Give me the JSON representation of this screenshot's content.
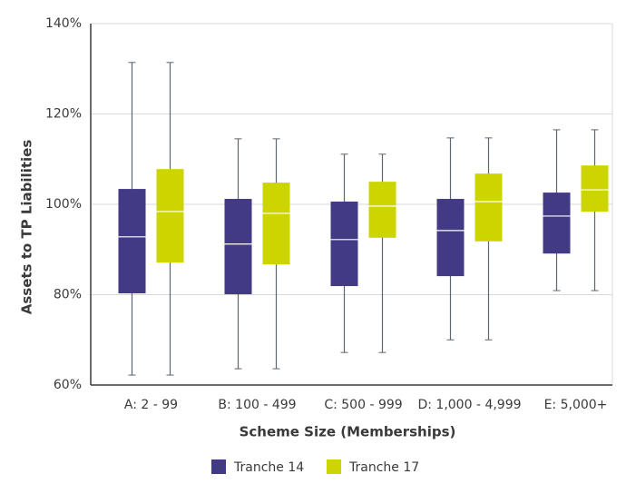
{
  "chart_data": {
    "type": "box",
    "categories": [
      "A: 2 - 99",
      "B: 100 - 499",
      "C: 500 - 999",
      "D: 1,000 - 4,999",
      "E: 5,000+"
    ],
    "x_label": "Scheme Size (Memberships)",
    "y_label": "Assets to TP Liabilities",
    "ylim": [
      60,
      140
    ],
    "yticks": [
      {
        "value": 60,
        "label": "60%"
      },
      {
        "value": 80,
        "label": "80%"
      },
      {
        "value": 100,
        "label": "100%"
      },
      {
        "value": 120,
        "label": "120%"
      },
      {
        "value": 140,
        "label": "140%"
      }
    ],
    "grid": true,
    "legend": "bottom",
    "series": [
      {
        "name": "Tranche 14",
        "color": "#433a86",
        "values": [
          {
            "min": 62.2,
            "q1": 80.3,
            "median": 92.8,
            "q3": 103.4,
            "max": 131.4
          },
          {
            "min": 63.6,
            "q1": 80.1,
            "median": 91.2,
            "q3": 101.2,
            "max": 114.5
          },
          {
            "min": 67.2,
            "q1": 81.9,
            "median": 92.2,
            "q3": 100.6,
            "max": 111.1
          },
          {
            "min": 70.0,
            "q1": 84.1,
            "median": 94.2,
            "q3": 101.2,
            "max": 114.7
          },
          {
            "min": 80.9,
            "q1": 89.1,
            "median": 97.4,
            "q3": 102.6,
            "max": 116.5
          }
        ]
      },
      {
        "name": "Tranche 17",
        "color": "#cdd500",
        "values": [
          {
            "min": 62.2,
            "q1": 87.1,
            "median": 98.4,
            "q3": 107.8,
            "max": 131.4
          },
          {
            "min": 63.6,
            "q1": 86.7,
            "median": 98.0,
            "q3": 104.8,
            "max": 114.5
          },
          {
            "min": 67.2,
            "q1": 92.6,
            "median": 99.6,
            "q3": 105.0,
            "max": 111.1
          },
          {
            "min": 70.0,
            "q1": 91.8,
            "median": 100.6,
            "q3": 106.8,
            "max": 114.7
          },
          {
            "min": 80.9,
            "q1": 98.4,
            "median": 103.2,
            "q3": 108.6,
            "max": 116.5
          }
        ]
      }
    ]
  }
}
